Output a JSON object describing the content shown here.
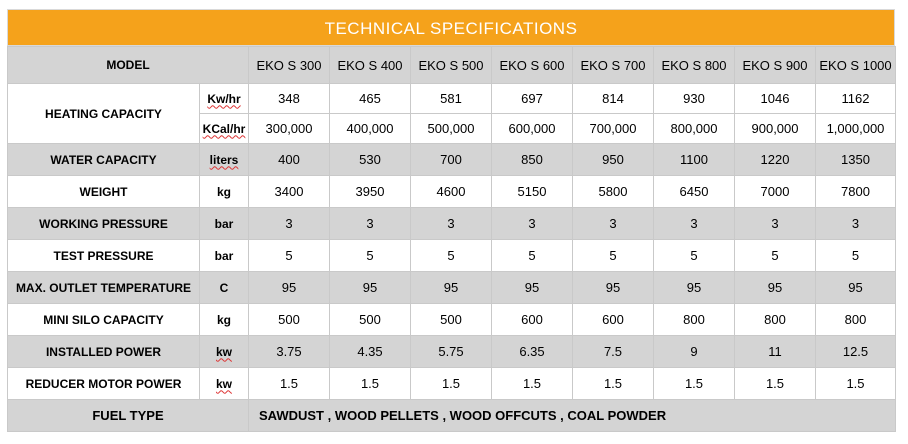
{
  "title": "TECHNICAL SPECIFICATIONS",
  "model_label": "MODEL",
  "models": [
    "EKO S 300",
    "EKO S 400",
    "EKO S 500",
    "EKO S 600",
    "EKO S 700",
    "EKO S 800",
    "EKO S 900",
    "EKO S 1000"
  ],
  "heating": {
    "label": "HEATING CAPACITY",
    "unit1": "Kw/hr",
    "values1": [
      "348",
      "465",
      "581",
      "697",
      "814",
      "930",
      "1046",
      "1162"
    ],
    "unit2": "KCal/hr",
    "values2": [
      "300,000",
      "400,000",
      "500,000",
      "600,000",
      "700,000",
      "800,000",
      "900,000",
      "1,000,000"
    ]
  },
  "rows": [
    {
      "label": "WATER CAPACITY",
      "unit": "liters",
      "values": [
        "400",
        "530",
        "700",
        "850",
        "950",
        "1100",
        "1220",
        "1350"
      ]
    },
    {
      "label": "WEIGHT",
      "unit": "kg",
      "values": [
        "3400",
        "3950",
        "4600",
        "5150",
        "5800",
        "6450",
        "7000",
        "7800"
      ]
    },
    {
      "label": "WORKING PRESSURE",
      "unit": "bar",
      "values": [
        "3",
        "3",
        "3",
        "3",
        "3",
        "3",
        "3",
        "3"
      ]
    },
    {
      "label": "TEST PRESSURE",
      "unit": "bar",
      "values": [
        "5",
        "5",
        "5",
        "5",
        "5",
        "5",
        "5",
        "5"
      ]
    },
    {
      "label": "MAX. OUTLET TEMPERATURE",
      "unit": "C",
      "values": [
        "95",
        "95",
        "95",
        "95",
        "95",
        "95",
        "95",
        "95"
      ]
    },
    {
      "label": "MINI SILO CAPACITY",
      "unit": "kg",
      "values": [
        "500",
        "500",
        "500",
        "600",
        "600",
        "800",
        "800",
        "800"
      ]
    },
    {
      "label": "INSTALLED POWER",
      "unit": "kw",
      "values": [
        "3.75",
        "4.35",
        "5.75",
        "6.35",
        "7.5",
        "9",
        "11",
        "12.5"
      ]
    },
    {
      "label": "REDUCER MOTOR POWER",
      "unit": "kw",
      "values": [
        "1.5",
        "1.5",
        "1.5",
        "1.5",
        "1.5",
        "1.5",
        "1.5",
        "1.5"
      ]
    }
  ],
  "fuel": {
    "label": "FUEL TYPE",
    "value": "SAWDUST , WOOD PELLETS , WOOD OFFCUTS , COAL POWDER"
  }
}
